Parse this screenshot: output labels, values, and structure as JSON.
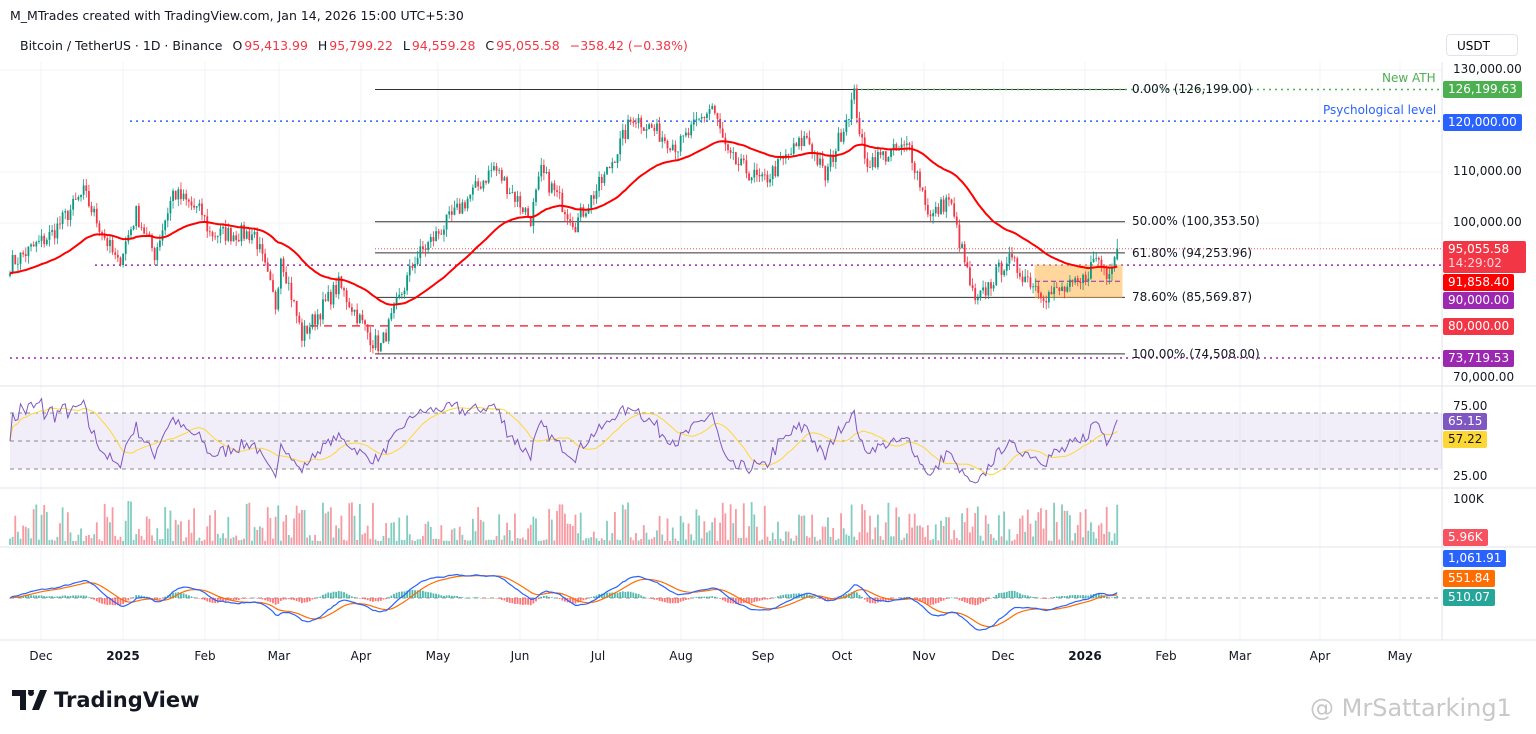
{
  "header": {
    "credit": "M_MTrades created with TradingView.com, Jan 14, 2026 15:00 UTC+5:30",
    "symbol": "Bitcoin / TetherUS · 1D · Binance",
    "open_label": "O",
    "open": "95,413.99",
    "high_label": "H",
    "high": "95,799.22",
    "low_label": "L",
    "low": "94,559.28",
    "close_label": "C",
    "close": "95,055.58",
    "change": "−358.42 (−0.38%)"
  },
  "price_axis": {
    "unit": "USDT",
    "ticks": [
      "130,000.00",
      "110,000.00",
      "100,000.00",
      "70,000.00"
    ]
  },
  "price_tags": [
    {
      "value": "126,199.63",
      "color": "#4caf50"
    },
    {
      "value": "120,000.00",
      "color": "#2962ff"
    },
    {
      "value": "95,055.58",
      "color": "#f23645"
    },
    {
      "value": "14:29:02",
      "color": "#f23645"
    },
    {
      "value": "91,858.40",
      "color": "#ff0000"
    },
    {
      "value": "90,000.00",
      "color": "#9c27b0"
    },
    {
      "value": "80,000.00",
      "color": "#f23645"
    },
    {
      "value": "73,719.53",
      "color": "#9c27b0"
    }
  ],
  "annotations": {
    "ath": "New ATH",
    "psych": "Psychological level"
  },
  "fib_levels": [
    {
      "label": "0.00% (126,199.00)",
      "price": 126199
    },
    {
      "label": "50.00% (100,353.50)",
      "price": 100353.5
    },
    {
      "label": "61.80% (94,253.96)",
      "price": 94253.96
    },
    {
      "label": "78.60% (85,569.87)",
      "price": 85569.87
    },
    {
      "label": "100.00% (74,508.00)",
      "price": 74508
    }
  ],
  "rsi": {
    "ticks": [
      "75.00",
      "25.00"
    ],
    "value": "65.15",
    "ma": "57.22",
    "value_color": "#7e57c2",
    "ma_color": "#fdd835"
  },
  "volume": {
    "tick": "100K",
    "value": "5.96K"
  },
  "macd": {
    "macd": "1,061.91",
    "signal": "551.84",
    "hist": "510.07"
  },
  "time_axis": [
    "Dec",
    "2025",
    "Feb",
    "Mar",
    "Apr",
    "May",
    "Jun",
    "Jul",
    "Aug",
    "Sep",
    "Oct",
    "Nov",
    "Dec",
    "2026",
    "Feb",
    "Mar",
    "Apr",
    "May"
  ],
  "footer": {
    "logo": "TradingView",
    "watermark": "@ MrSattarking1"
  },
  "chart_data": {
    "type": "candlestick",
    "title": "Bitcoin / TetherUS · 1D · Binance",
    "ylim": [
      70000,
      130000
    ],
    "x_start": "2024-11-19",
    "anchor_closes": [
      [
        0,
        92000
      ],
      [
        16,
        98000
      ],
      [
        28,
        106000
      ],
      [
        41,
        92000
      ],
      [
        48,
        102000
      ],
      [
        55,
        94000
      ],
      [
        62,
        106000
      ],
      [
        73,
        102000
      ],
      [
        76,
        98000
      ],
      [
        93,
        98000
      ],
      [
        101,
        84000
      ],
      [
        103,
        94000
      ],
      [
        111,
        78000
      ],
      [
        125,
        88000
      ],
      [
        138,
        77000
      ],
      [
        141,
        76000
      ],
      [
        154,
        93000
      ],
      [
        171,
        103000
      ],
      [
        184,
        111000
      ],
      [
        198,
        101000
      ],
      [
        202,
        110000
      ],
      [
        215,
        100000
      ],
      [
        226,
        109000
      ],
      [
        237,
        121000
      ],
      [
        254,
        115000
      ],
      [
        267,
        123000
      ],
      [
        273,
        113000
      ],
      [
        286,
        108000
      ],
      [
        303,
        117000
      ],
      [
        310,
        109000
      ],
      [
        321,
        125000
      ],
      [
        325,
        112000
      ],
      [
        342,
        115000
      ],
      [
        350,
        101000
      ],
      [
        357,
        105000
      ],
      [
        367,
        84000
      ],
      [
        379,
        93000
      ],
      [
        394,
        86000
      ],
      [
        407,
        88000
      ],
      [
        413,
        93500
      ],
      [
        417,
        90500
      ],
      [
        421,
        95055.58
      ]
    ],
    "horizontal_levels": [
      91858.4,
      90000,
      80000,
      73719.53,
      120000,
      126199.63
    ],
    "consolidation_box": [
      85570,
      91858
    ]
  }
}
